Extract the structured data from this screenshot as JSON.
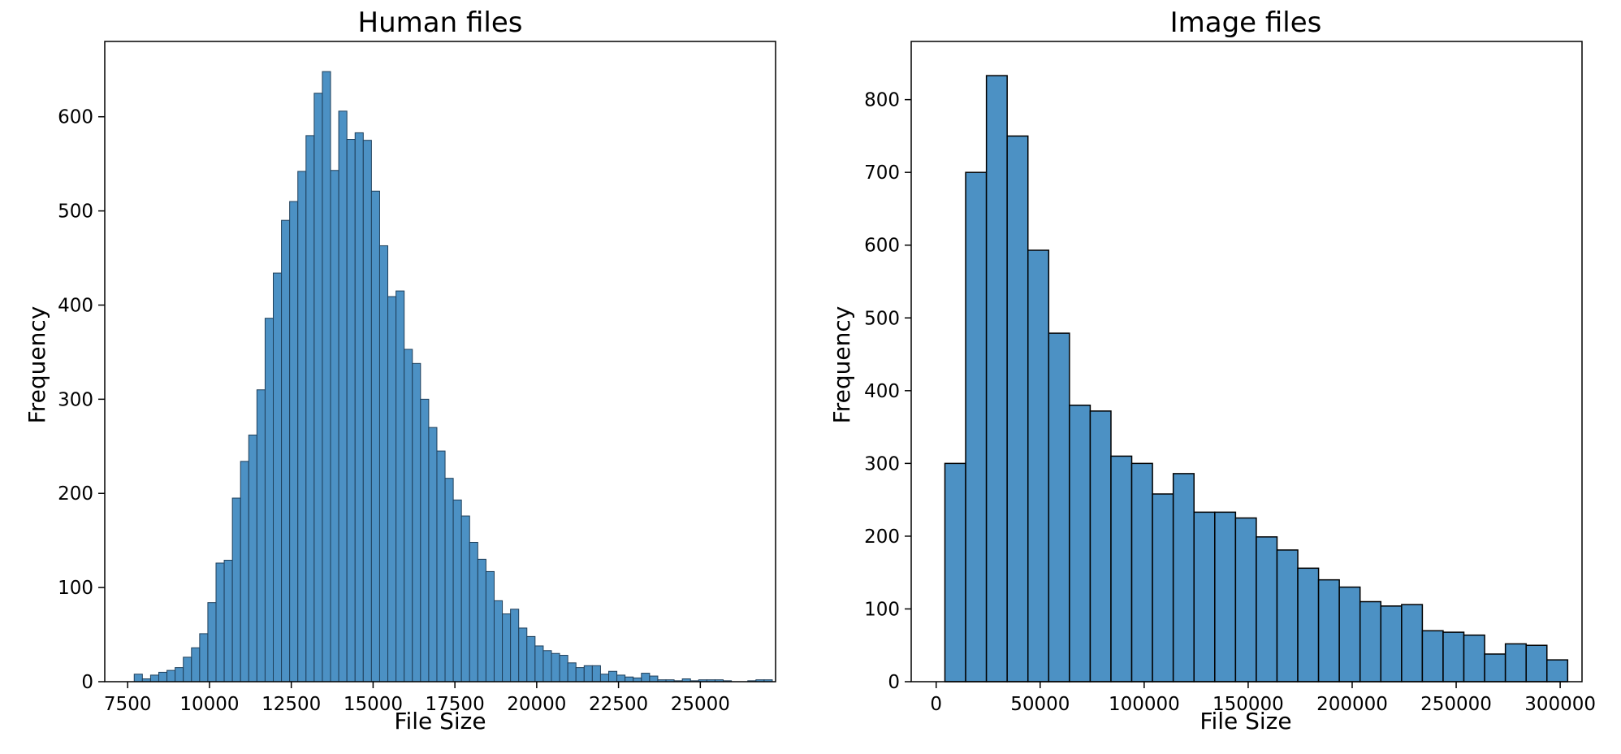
{
  "chart_data": [
    {
      "type": "bar",
      "title": "Human files",
      "xlabel": "File Size",
      "ylabel": "Frequency",
      "xlim": [
        6800,
        27300
      ],
      "ylim": [
        0,
        680
      ],
      "x_ticks": [
        7500,
        10000,
        12500,
        15000,
        17500,
        20000,
        22500,
        25000
      ],
      "x_tick_labels": [
        "7500",
        "10000",
        "12500",
        "15000",
        "17500",
        "20000",
        "22500",
        "25000"
      ],
      "y_ticks": [
        0,
        100,
        200,
        300,
        400,
        500,
        600
      ],
      "y_tick_labels": [
        "0",
        "100",
        "200",
        "300",
        "400",
        "500",
        "600"
      ],
      "bin_start": 7700,
      "bin_width": 250,
      "bar_color": "#4c91c4",
      "edge_color": "#1f3f5a",
      "values": [
        8,
        3,
        7,
        10,
        12,
        15,
        26,
        36,
        51,
        84,
        126,
        129,
        195,
        234,
        262,
        310,
        386,
        434,
        490,
        510,
        542,
        580,
        625,
        648,
        543,
        606,
        576,
        583,
        575,
        521,
        463,
        409,
        415,
        353,
        338,
        300,
        270,
        245,
        216,
        193,
        176,
        148,
        130,
        117,
        86,
        72,
        77,
        57,
        48,
        38,
        33,
        30,
        28,
        20,
        15,
        17,
        17,
        8,
        11,
        7,
        5,
        4,
        9,
        6,
        2,
        2,
        1,
        3,
        1,
        2,
        2,
        2,
        1,
        0,
        0,
        1,
        2,
        2
      ]
    },
    {
      "type": "bar",
      "title": "Image files",
      "xlabel": "File Size",
      "ylabel": "Frequency",
      "xlim": [
        -12000,
        310500
      ],
      "ylim": [
        0,
        880
      ],
      "x_ticks": [
        0,
        50000,
        100000,
        150000,
        200000,
        250000,
        300000
      ],
      "x_tick_labels": [
        "0",
        "50000",
        "100000",
        "150000",
        "200000",
        "250000",
        "300000"
      ],
      "y_ticks": [
        0,
        100,
        200,
        300,
        400,
        500,
        600,
        700,
        800
      ],
      "y_tick_labels": [
        "0",
        "100",
        "200",
        "300",
        "400",
        "500",
        "600",
        "700",
        "800"
      ],
      "bin_start": 4200,
      "bin_width": 9980,
      "bar_color": "#4c91c4",
      "edge_color": "#000000",
      "values": [
        300,
        700,
        833,
        750,
        593,
        479,
        380,
        372,
        310,
        300,
        258,
        286,
        233,
        233,
        225,
        199,
        181,
        156,
        140,
        130,
        110,
        104,
        106,
        70,
        68,
        64,
        38,
        52,
        50,
        30
      ]
    }
  ]
}
